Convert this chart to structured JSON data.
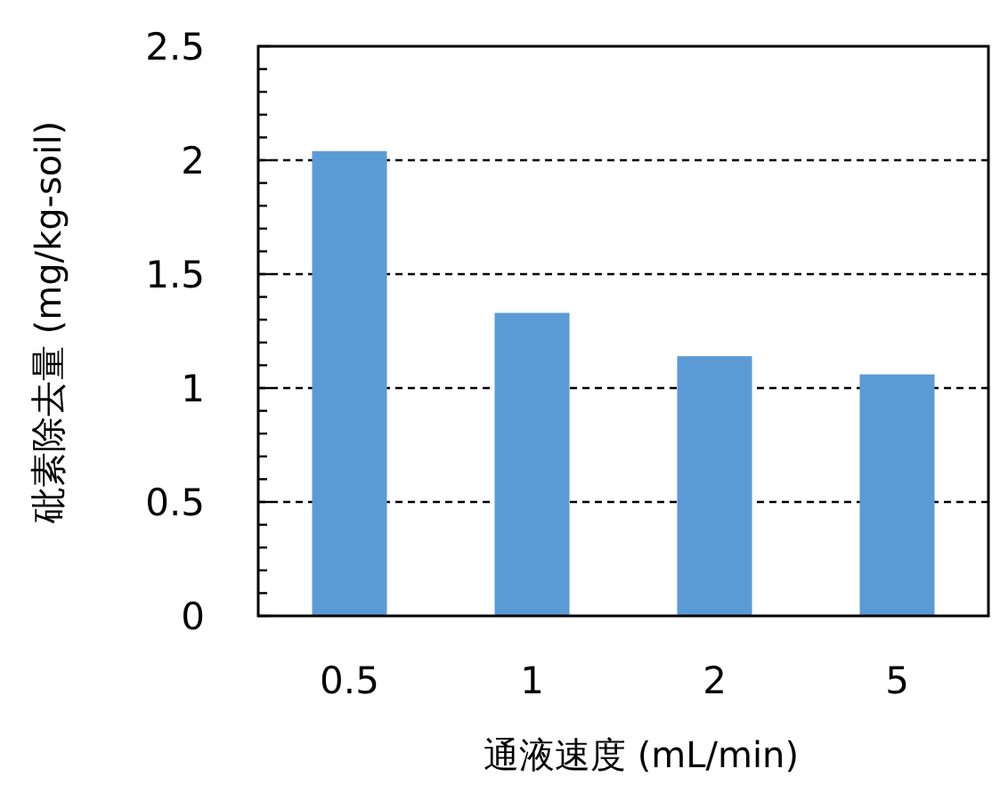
{
  "chart_data": {
    "type": "bar",
    "categories": [
      "0.5",
      "1",
      "2",
      "5"
    ],
    "values": [
      2.04,
      1.33,
      1.14,
      1.06
    ],
    "color": "#5b9bd5",
    "xlabel": "通液速度 (mL/min)",
    "ylabel": "砒素除去量 (mg/kg-soil)",
    "ylim": [
      0,
      2.5
    ],
    "yticks": [
      0,
      {
        "value": 0.1,
        "label": null
      },
      {
        "value": 0.2,
        "label": null
      },
      {
        "value": 0.3,
        "label": null
      },
      {
        "value": 0.4,
        "label": null
      },
      0.5,
      {
        "value": 0.6,
        "label": null
      },
      {
        "value": 0.7,
        "label": null
      },
      {
        "value": 0.8,
        "label": null
      },
      {
        "value": 0.9,
        "label": null
      },
      1,
      {
        "value": 1.1,
        "label": null
      },
      {
        "value": 1.2,
        "label": null
      },
      {
        "value": 1.3,
        "label": null
      },
      {
        "value": 1.4,
        "label": null
      },
      1.5,
      {
        "value": 1.6,
        "label": null
      },
      {
        "value": 1.7,
        "label": null
      },
      {
        "value": 1.8,
        "label": null
      },
      {
        "value": 1.9,
        "label": null
      },
      2,
      {
        "value": 2.1,
        "label": null
      },
      {
        "value": 2.2,
        "label": null
      },
      {
        "value": 2.3,
        "label": null
      },
      {
        "value": 2.4,
        "label": null
      },
      2.5
    ],
    "grid": "y"
  }
}
